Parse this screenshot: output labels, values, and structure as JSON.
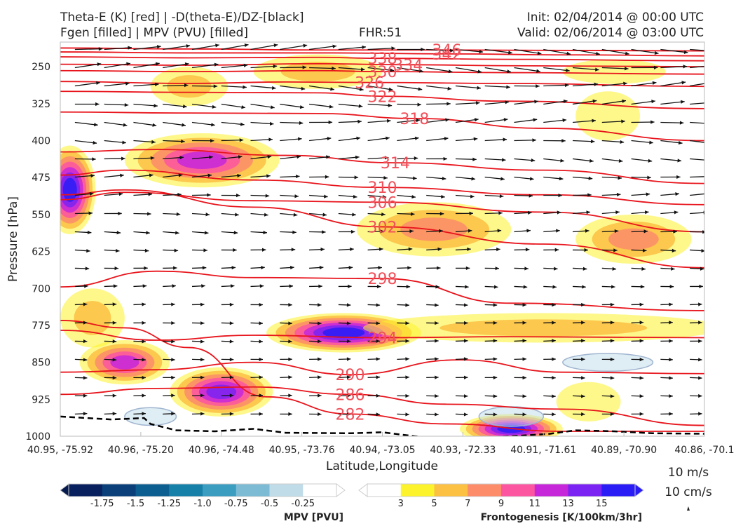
{
  "header": {
    "title_line1": "Theta-E (K) [red] | -D(theta-E)/DZ-[black]",
    "title_line2": "Fgen [filled] | MPV (PVU) [filled]",
    "fhr": "FHR:51",
    "init": "Init: 02/04/2014 @ 00:00 UTC",
    "valid": "Valid: 02/06/2014 @ 03:00 UTC"
  },
  "chart_data": {
    "type": "cross-section",
    "xlabel": "Latitude,Longitude",
    "ylabel": "Pressure [hPa]",
    "x_ticks": [
      "40.95, -75.92",
      "40.96, -75.20",
      "40.96, -74.48",
      "40.95, -73.76",
      "40.94, -73.05",
      "40.93, -72.33",
      "40.91, -71.61",
      "40.89, -70.90",
      "40.86, -70.1"
    ],
    "y_ticks": [
      250,
      325,
      400,
      475,
      550,
      625,
      700,
      775,
      850,
      925,
      1000
    ],
    "ylim": [
      200,
      1000
    ],
    "y_inverted": true,
    "theta_e_contours": [
      {
        "label": "346",
        "points": [
          [
            0.0,
            212
          ],
          [
            0.2,
            214
          ],
          [
            0.4,
            216
          ],
          [
            0.6,
            216
          ],
          [
            0.8,
            217
          ],
          [
            1.0,
            218
          ]
        ]
      },
      {
        "label": "342",
        "points": [
          [
            0.0,
            220
          ],
          [
            0.2,
            222
          ],
          [
            0.42,
            222
          ],
          [
            0.6,
            224
          ],
          [
            0.8,
            226
          ],
          [
            1.0,
            228
          ]
        ]
      },
      {
        "label": "338",
        "points": [
          [
            0.0,
            230
          ],
          [
            0.2,
            232
          ],
          [
            0.4,
            231
          ],
          [
            0.5,
            233
          ],
          [
            0.7,
            235
          ],
          [
            1.0,
            238
          ]
        ]
      },
      {
        "label": "334",
        "points": [
          [
            0.0,
            245
          ],
          [
            0.2,
            247
          ],
          [
            0.4,
            244
          ],
          [
            0.54,
            246
          ],
          [
            0.7,
            248
          ],
          [
            1.0,
            250
          ]
        ]
      },
      {
        "label": "330",
        "points": [
          [
            0.0,
            258
          ],
          [
            0.2,
            260
          ],
          [
            0.4,
            258
          ],
          [
            0.5,
            260
          ],
          [
            0.7,
            262
          ],
          [
            1.0,
            265
          ]
        ]
      },
      {
        "label": "326",
        "points": [
          [
            0.0,
            280
          ],
          [
            0.2,
            284
          ],
          [
            0.35,
            281
          ],
          [
            0.48,
            282
          ],
          [
            0.7,
            284
          ],
          [
            1.0,
            290
          ]
        ]
      },
      {
        "label": "322",
        "points": [
          [
            0.0,
            300
          ],
          [
            0.2,
            302
          ],
          [
            0.4,
            303
          ],
          [
            0.5,
            310
          ],
          [
            0.7,
            320
          ],
          [
            1.0,
            335
          ]
        ]
      },
      {
        "label": "318",
        "points": [
          [
            0.0,
            342
          ],
          [
            0.2,
            344
          ],
          [
            0.4,
            345
          ],
          [
            0.55,
            355
          ],
          [
            0.75,
            375
          ],
          [
            1.0,
            400
          ]
        ]
      },
      {
        "label": "314",
        "points": [
          [
            0.0,
            423
          ],
          [
            0.15,
            418
          ],
          [
            0.35,
            430
          ],
          [
            0.52,
            445
          ],
          [
            0.75,
            460
          ],
          [
            1.0,
            487
          ]
        ]
      },
      {
        "label": "310",
        "points": [
          [
            0.0,
            470
          ],
          [
            0.1,
            460
          ],
          [
            0.3,
            480
          ],
          [
            0.5,
            495
          ],
          [
            0.75,
            510
          ],
          [
            1.0,
            530
          ]
        ]
      },
      {
        "label": "306",
        "points": [
          [
            0.0,
            520
          ],
          [
            0.1,
            505
          ],
          [
            0.3,
            522
          ],
          [
            0.5,
            525
          ],
          [
            0.75,
            545
          ],
          [
            1.0,
            585
          ]
        ]
      },
      {
        "label": "302",
        "points": [
          [
            0.0,
            510
          ],
          [
            0.1,
            500
          ],
          [
            0.3,
            535
          ],
          [
            0.5,
            575
          ],
          [
            0.75,
            610
          ],
          [
            1.0,
            658
          ]
        ]
      },
      {
        "label": "298",
        "points": [
          [
            0.0,
            697
          ],
          [
            0.15,
            665
          ],
          [
            0.3,
            678
          ],
          [
            0.5,
            680
          ],
          [
            0.7,
            730
          ],
          [
            1.0,
            745
          ]
        ]
      },
      {
        "label": "294",
        "points": [
          [
            0.0,
            785
          ],
          [
            0.15,
            805
          ],
          [
            0.3,
            795
          ],
          [
            0.5,
            800
          ],
          [
            0.7,
            798
          ],
          [
            1.0,
            800
          ]
        ]
      },
      {
        "label": "290",
        "points": [
          [
            0.0,
            870
          ],
          [
            0.15,
            865
          ],
          [
            0.3,
            850
          ],
          [
            0.45,
            875
          ],
          [
            0.62,
            845
          ],
          [
            0.78,
            870
          ],
          [
            1.0,
            873
          ]
        ]
      },
      {
        "label": "286",
        "points": [
          [
            0.0,
            915
          ],
          [
            0.15,
            903
          ],
          [
            0.3,
            900
          ],
          [
            0.45,
            915
          ],
          [
            0.6,
            935
          ],
          [
            0.78,
            945
          ],
          [
            1.0,
            978
          ]
        ]
      },
      {
        "label": "282",
        "points": [
          [
            0.0,
            765
          ],
          [
            0.1,
            780
          ],
          [
            0.2,
            820
          ],
          [
            0.32,
            920
          ],
          [
            0.45,
            955
          ],
          [
            0.6,
            975
          ],
          [
            0.78,
            990
          ],
          [
            1.0,
            990
          ]
        ]
      }
    ],
    "fgen_levels": [
      3,
      5,
      7,
      9,
      11,
      13,
      15
    ],
    "fgen_colors": [
      "#fdf32c",
      "#fcc042",
      "#fc8c6a",
      "#fc56a0",
      "#c527d9",
      "#7a23f2",
      "#2a1cf5"
    ],
    "fgen_blobs": [
      {
        "x": 0.2,
        "p": 290,
        "rx": 0.06,
        "rp": 40,
        "peak": 5
      },
      {
        "x": 0.4,
        "p": 260,
        "rx": 0.1,
        "rp": 35,
        "peak": 5
      },
      {
        "x": 0.86,
        "p": 260,
        "rx": 0.08,
        "rp": 25,
        "peak": 3
      },
      {
        "x": 0.85,
        "p": 350,
        "rx": 0.05,
        "rp": 50,
        "peak": 3
      },
      {
        "x": 0.22,
        "p": 440,
        "rx": 0.12,
        "rp": 55,
        "peak": 11
      },
      {
        "x": 0.015,
        "p": 500,
        "rx": 0.04,
        "rp": 90,
        "peak": 15
      },
      {
        "x": 0.58,
        "p": 580,
        "rx": 0.12,
        "rp": 55,
        "peak": 7
      },
      {
        "x": 0.89,
        "p": 600,
        "rx": 0.09,
        "rp": 50,
        "peak": 7
      },
      {
        "x": 0.05,
        "p": 760,
        "rx": 0.05,
        "rp": 60,
        "peak": 5
      },
      {
        "x": 0.44,
        "p": 790,
        "rx": 0.12,
        "rp": 40,
        "peak": 15
      },
      {
        "x": 0.75,
        "p": 780,
        "rx": 0.28,
        "rp": 30,
        "peak": 5
      },
      {
        "x": 0.1,
        "p": 850,
        "rx": 0.07,
        "rp": 45,
        "peak": 11
      },
      {
        "x": 0.25,
        "p": 910,
        "rx": 0.08,
        "rp": 50,
        "peak": 13
      },
      {
        "x": 0.7,
        "p": 985,
        "rx": 0.08,
        "rp": 30,
        "peak": 15
      },
      {
        "x": 0.82,
        "p": 930,
        "rx": 0.05,
        "rp": 40,
        "peak": 3
      }
    ],
    "mpv_levels": [
      -1.75,
      -1.5,
      -1.25,
      -1.0,
      -0.75,
      -0.5,
      -0.25
    ],
    "mpv_colors": [
      "#08205e",
      "#0a3f7a",
      "#0c5e90",
      "#1780a8",
      "#3b9dc0",
      "#7dbbd5",
      "#c0dce9"
    ],
    "surface_pressure": [
      [
        0.0,
        960
      ],
      [
        0.08,
        966
      ],
      [
        0.13,
        963
      ],
      [
        0.14,
        975
      ],
      [
        0.18,
        988
      ],
      [
        0.24,
        990
      ],
      [
        0.3,
        985
      ],
      [
        0.35,
        993
      ],
      [
        0.45,
        994
      ],
      [
        0.5,
        992
      ],
      [
        0.55,
        1000
      ],
      [
        0.6,
        1005
      ],
      [
        0.66,
        1002
      ],
      [
        0.7,
        1000
      ],
      [
        0.76,
        995
      ],
      [
        0.8,
        988
      ],
      [
        0.86,
        990
      ],
      [
        0.92,
        994
      ],
      [
        1.0,
        995
      ]
    ],
    "colorbars": [
      {
        "title": "MPV [PVU]",
        "labels": [
          "-1.75",
          "-1.5",
          "-1.25",
          "-1.0",
          "-0.75",
          "-0.5",
          "-0.25"
        ]
      },
      {
        "title": "Frontogenesis [K/100km/3hr]",
        "labels": [
          "3",
          "5",
          "7",
          "9",
          "11",
          "13",
          "15"
        ]
      }
    ],
    "wind_reference": [
      "10 m/s",
      "10 cm/s"
    ]
  }
}
